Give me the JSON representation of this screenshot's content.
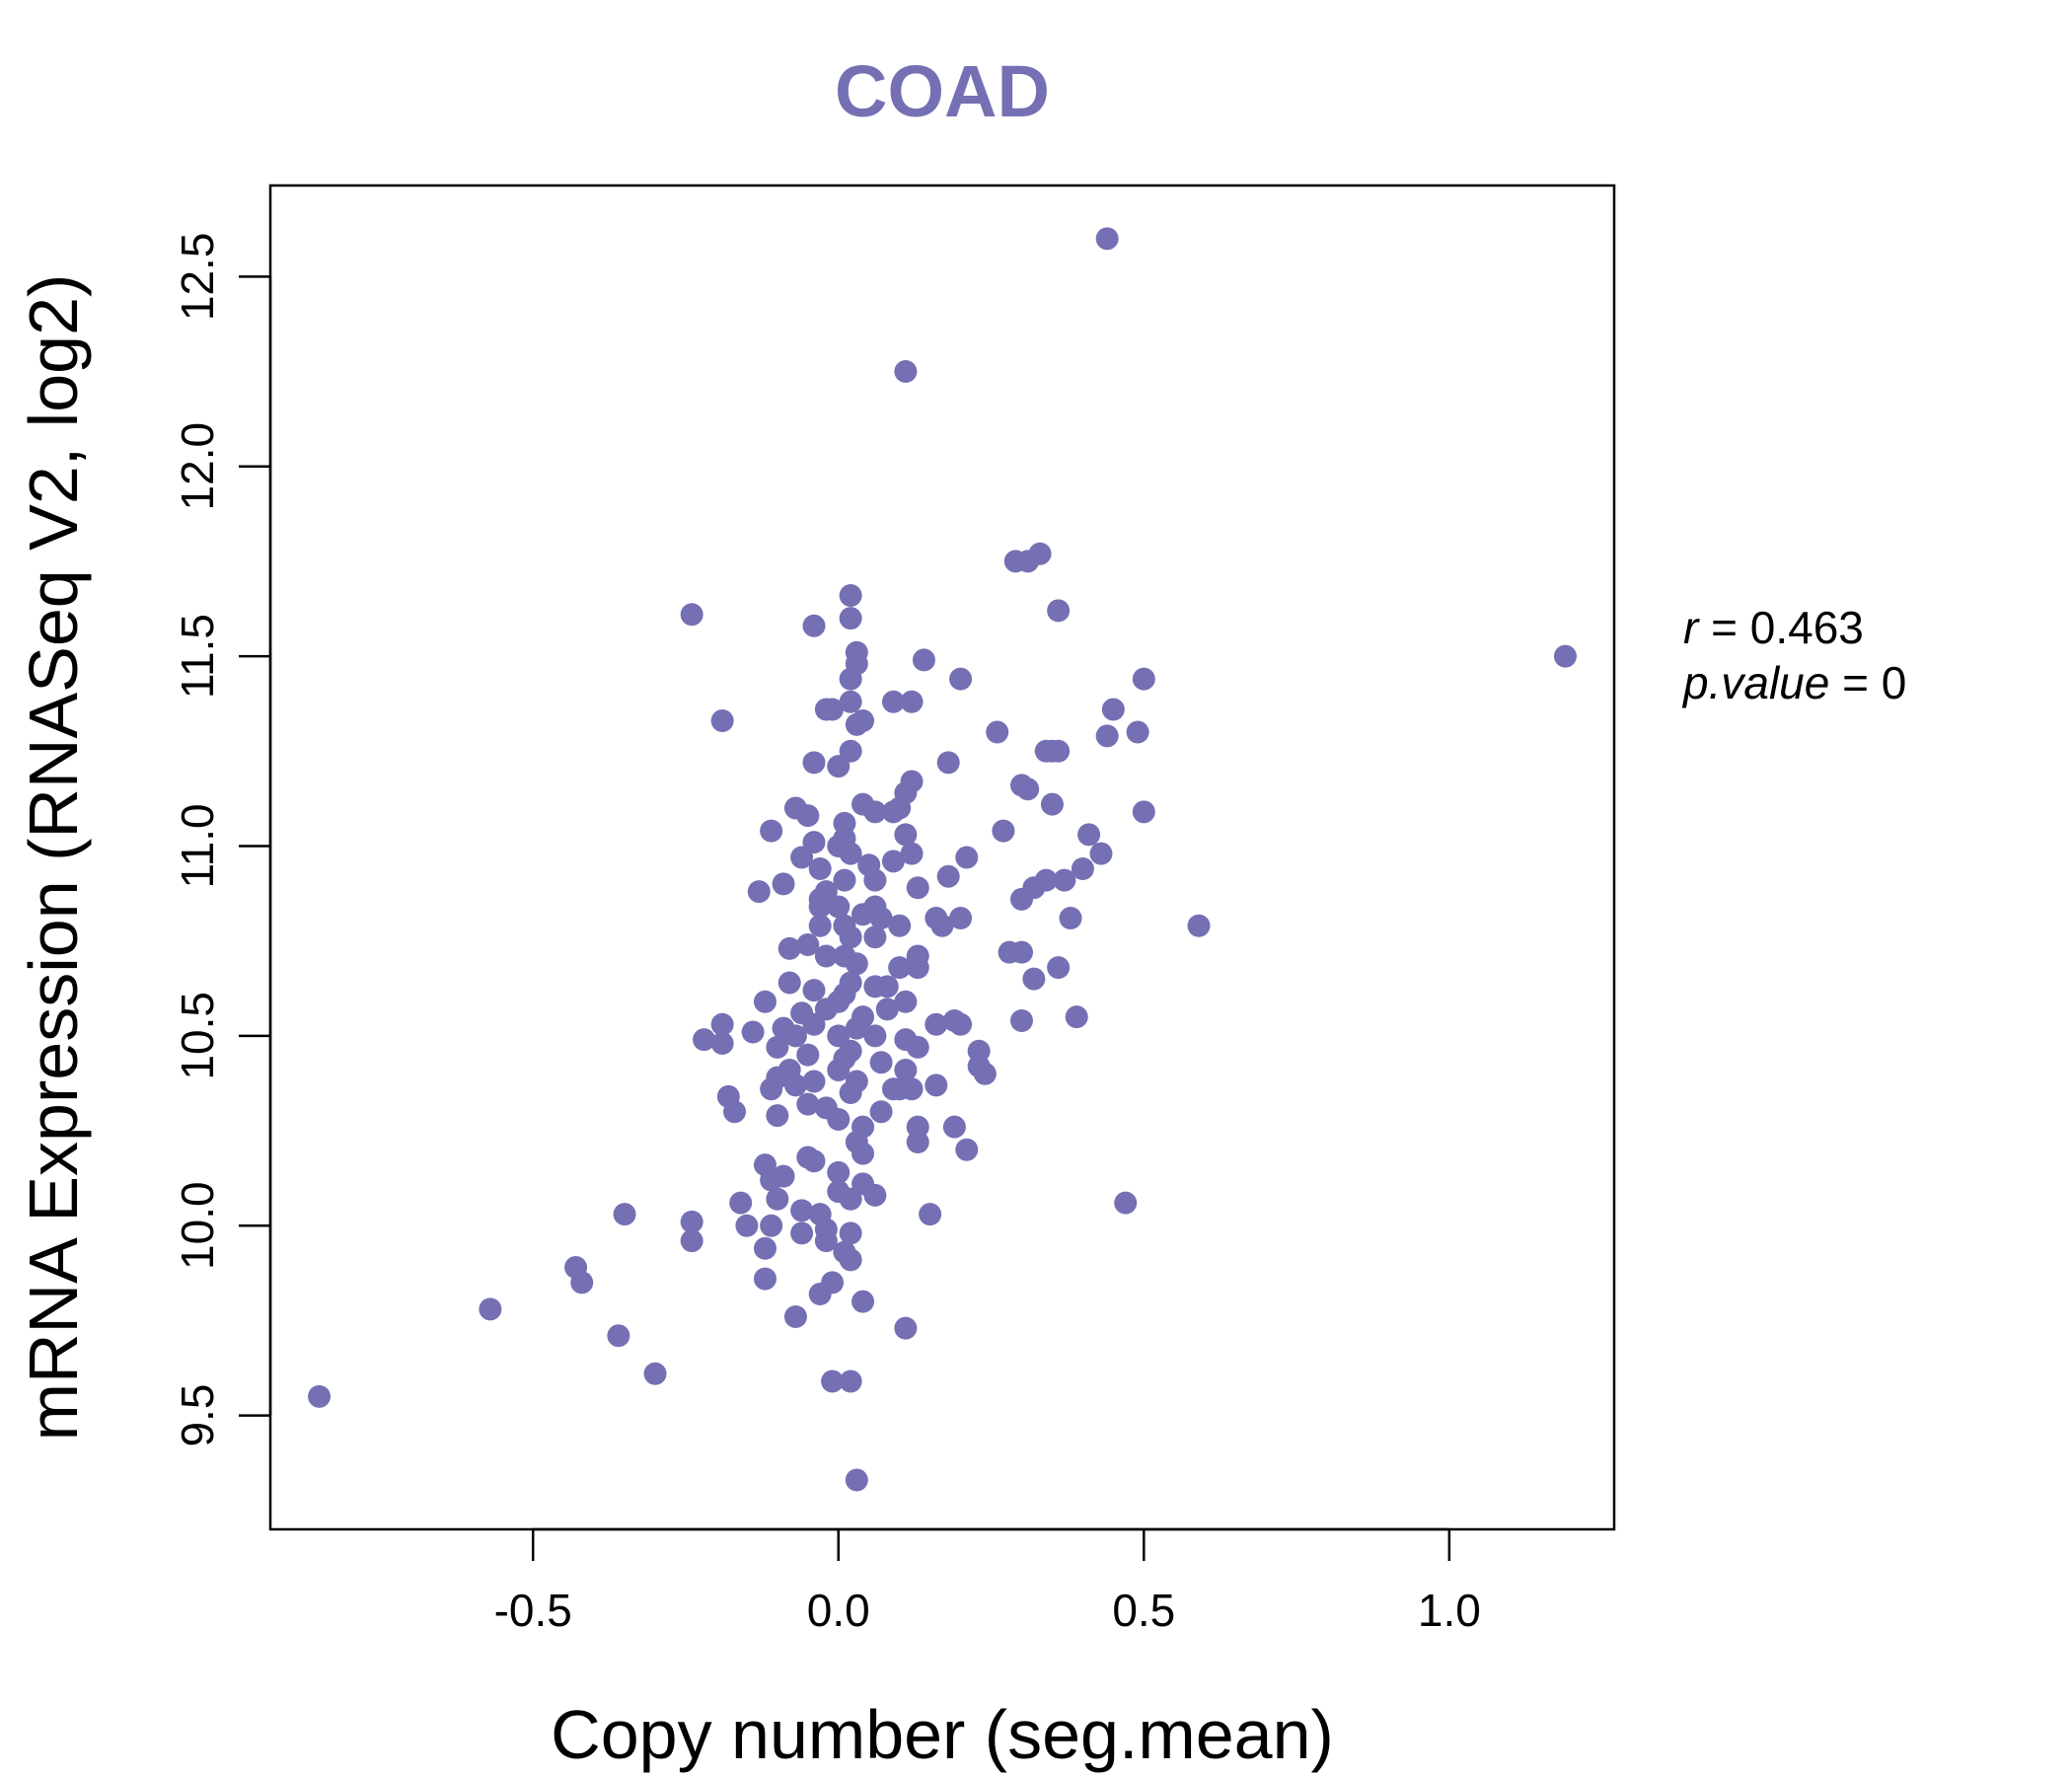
{
  "colors": {
    "accent": "#7570b3",
    "axis": "#000000",
    "background": "#ffffff"
  },
  "stats": {
    "r_label": "r",
    "r_value": "0.463",
    "p_label": "p.value",
    "p_value": "0"
  },
  "chart_data": {
    "type": "scatter",
    "title": "COAD",
    "xlabel": "Copy number (seg.mean)",
    "ylabel": "mRNA Expression (RNASeq V2, log2)",
    "xlim": [
      -0.93,
      1.27
    ],
    "ylim": [
      9.2,
      12.74
    ],
    "x_ticks": [
      -0.5,
      0.0,
      0.5,
      1.0
    ],
    "x_tick_labels": [
      "-0.5",
      "0.0",
      "0.5",
      "1.0"
    ],
    "y_ticks": [
      9.5,
      10.0,
      10.5,
      11.0,
      11.5,
      12.0,
      12.5
    ],
    "y_tick_labels": [
      "9.5",
      "10.0",
      "10.5",
      "11.0",
      "11.5",
      "12.0",
      "12.5"
    ],
    "grid": false,
    "legend": "none",
    "points": [
      [
        0.44,
        12.6
      ],
      [
        0.11,
        12.25
      ],
      [
        0.33,
        11.77
      ],
      [
        0.29,
        11.75
      ],
      [
        0.31,
        11.75
      ],
      [
        0.36,
        11.62
      ],
      [
        0.02,
        11.66
      ],
      [
        0.02,
        11.6
      ],
      [
        -0.04,
        11.58
      ],
      [
        -0.24,
        11.61
      ],
      [
        1.19,
        11.5
      ],
      [
        0.03,
        11.51
      ],
      [
        0.03,
        11.48
      ],
      [
        0.14,
        11.49
      ],
      [
        0.02,
        11.44
      ],
      [
        0.2,
        11.44
      ],
      [
        0.5,
        11.44
      ],
      [
        0.09,
        11.38
      ],
      [
        0.12,
        11.38
      ],
      [
        0.02,
        11.38
      ],
      [
        -0.01,
        11.36
      ],
      [
        -0.02,
        11.36
      ],
      [
        0.45,
        11.36
      ],
      [
        -0.19,
        11.33
      ],
      [
        0.04,
        11.33
      ],
      [
        0.03,
        11.32
      ],
      [
        0.26,
        11.3
      ],
      [
        0.44,
        11.29
      ],
      [
        0.49,
        11.3
      ],
      [
        0.34,
        11.25
      ],
      [
        0.35,
        11.25
      ],
      [
        0.36,
        11.25
      ],
      [
        0.02,
        11.25
      ],
      [
        -0.04,
        11.22
      ],
      [
        0.0,
        11.21
      ],
      [
        0.18,
        11.22
      ],
      [
        0.12,
        11.17
      ],
      [
        0.3,
        11.16
      ],
      [
        0.31,
        11.15
      ],
      [
        0.11,
        11.14
      ],
      [
        0.35,
        11.11
      ],
      [
        0.04,
        11.11
      ],
      [
        0.06,
        11.09
      ],
      [
        0.09,
        11.09
      ],
      [
        0.1,
        11.1
      ],
      [
        0.5,
        11.09
      ],
      [
        -0.07,
        11.1
      ],
      [
        -0.05,
        11.08
      ],
      [
        0.01,
        11.06
      ],
      [
        -0.11,
        11.04
      ],
      [
        0.27,
        11.04
      ],
      [
        0.41,
        11.03
      ],
      [
        0.11,
        11.03
      ],
      [
        0.01,
        11.02
      ],
      [
        -0.04,
        11.01
      ],
      [
        0.0,
        11.0
      ],
      [
        0.02,
        10.98
      ],
      [
        -0.06,
        10.97
      ],
      [
        0.12,
        10.98
      ],
      [
        0.21,
        10.97
      ],
      [
        0.43,
        10.98
      ],
      [
        0.09,
        10.96
      ],
      [
        0.05,
        10.95
      ],
      [
        -0.03,
        10.94
      ],
      [
        0.4,
        10.94
      ],
      [
        0.18,
        10.92
      ],
      [
        0.37,
        10.91
      ],
      [
        0.34,
        10.91
      ],
      [
        0.01,
        10.91
      ],
      [
        -0.09,
        10.9
      ],
      [
        0.06,
        10.91
      ],
      [
        0.32,
        10.89
      ],
      [
        0.13,
        10.89
      ],
      [
        -0.02,
        10.88
      ],
      [
        -0.13,
        10.88
      ],
      [
        -0.03,
        10.86
      ],
      [
        0.3,
        10.86
      ],
      [
        0.0,
        10.84
      ],
      [
        0.06,
        10.84
      ],
      [
        -0.03,
        10.84
      ],
      [
        0.04,
        10.82
      ],
      [
        0.07,
        10.81
      ],
      [
        0.16,
        10.81
      ],
      [
        0.2,
        10.81
      ],
      [
        0.38,
        10.81
      ],
      [
        0.59,
        10.79
      ],
      [
        0.17,
        10.79
      ],
      [
        0.1,
        10.79
      ],
      [
        0.01,
        10.79
      ],
      [
        -0.03,
        10.79
      ],
      [
        0.06,
        10.76
      ],
      [
        0.02,
        10.76
      ],
      [
        -0.05,
        10.74
      ],
      [
        -0.08,
        10.73
      ],
      [
        0.28,
        10.72
      ],
      [
        0.3,
        10.72
      ],
      [
        0.01,
        10.71
      ],
      [
        0.13,
        10.71
      ],
      [
        -0.02,
        10.71
      ],
      [
        0.03,
        10.69
      ],
      [
        0.1,
        10.68
      ],
      [
        0.13,
        10.68
      ],
      [
        0.36,
        10.68
      ],
      [
        -0.08,
        10.64
      ],
      [
        0.32,
        10.65
      ],
      [
        0.02,
        10.64
      ],
      [
        0.06,
        10.63
      ],
      [
        0.08,
        10.63
      ],
      [
        -0.04,
        10.62
      ],
      [
        0.01,
        10.61
      ],
      [
        -0.12,
        10.59
      ],
      [
        0.0,
        10.59
      ],
      [
        0.11,
        10.59
      ],
      [
        -0.02,
        10.57
      ],
      [
        0.08,
        10.57
      ],
      [
        -0.06,
        10.56
      ],
      [
        0.04,
        10.55
      ],
      [
        0.19,
        10.54
      ],
      [
        0.3,
        10.54
      ],
      [
        0.39,
        10.55
      ],
      [
        -0.04,
        10.53
      ],
      [
        0.16,
        10.53
      ],
      [
        0.2,
        10.53
      ],
      [
        -0.19,
        10.53
      ],
      [
        -0.09,
        10.52
      ],
      [
        0.03,
        10.52
      ],
      [
        -0.14,
        10.51
      ],
      [
        -0.07,
        10.5
      ],
      [
        0.0,
        10.5
      ],
      [
        0.06,
        10.5
      ],
      [
        -0.22,
        10.49
      ],
      [
        -0.19,
        10.48
      ],
      [
        0.11,
        10.49
      ],
      [
        0.13,
        10.47
      ],
      [
        -0.1,
        10.47
      ],
      [
        0.02,
        10.46
      ],
      [
        0.23,
        10.46
      ],
      [
        -0.05,
        10.45
      ],
      [
        0.01,
        10.44
      ],
      [
        0.07,
        10.43
      ],
      [
        0.23,
        10.42
      ],
      [
        -0.08,
        10.41
      ],
      [
        0.0,
        10.41
      ],
      [
        0.11,
        10.41
      ],
      [
        0.24,
        10.4
      ],
      [
        -0.1,
        10.39
      ],
      [
        -0.04,
        10.38
      ],
      [
        0.03,
        10.38
      ],
      [
        0.16,
        10.37
      ],
      [
        -0.07,
        10.37
      ],
      [
        0.09,
        10.36
      ],
      [
        0.12,
        10.36
      ],
      [
        0.1,
        10.36
      ],
      [
        -0.11,
        10.36
      ],
      [
        0.02,
        10.35
      ],
      [
        -0.18,
        10.34
      ],
      [
        -0.05,
        10.32
      ],
      [
        -0.02,
        10.31
      ],
      [
        -0.17,
        10.3
      ],
      [
        0.07,
        10.3
      ],
      [
        -0.1,
        10.29
      ],
      [
        0.0,
        10.28
      ],
      [
        0.04,
        10.26
      ],
      [
        0.13,
        10.26
      ],
      [
        0.19,
        10.26
      ],
      [
        0.03,
        10.22
      ],
      [
        0.13,
        10.22
      ],
      [
        0.21,
        10.2
      ],
      [
        0.04,
        10.19
      ],
      [
        -0.05,
        10.18
      ],
      [
        -0.04,
        10.17
      ],
      [
        -0.12,
        10.16
      ],
      [
        0.0,
        10.14
      ],
      [
        -0.09,
        10.13
      ],
      [
        -0.11,
        10.12
      ],
      [
        0.04,
        10.11
      ],
      [
        0.0,
        10.09
      ],
      [
        -0.1,
        10.07
      ],
      [
        0.06,
        10.08
      ],
      [
        0.02,
        10.07
      ],
      [
        -0.16,
        10.06
      ],
      [
        0.47,
        10.06
      ],
      [
        -0.06,
        10.04
      ],
      [
        -0.03,
        10.03
      ],
      [
        0.15,
        10.03
      ],
      [
        -0.35,
        10.03
      ],
      [
        -0.24,
        10.01
      ],
      [
        -0.15,
        10.0
      ],
      [
        -0.11,
        10.0
      ],
      [
        -0.02,
        9.99
      ],
      [
        -0.06,
        9.98
      ],
      [
        0.02,
        9.98
      ],
      [
        -0.24,
        9.96
      ],
      [
        -0.02,
        9.96
      ],
      [
        -0.12,
        9.94
      ],
      [
        0.01,
        9.93
      ],
      [
        0.02,
        9.91
      ],
      [
        -0.43,
        9.89
      ],
      [
        -0.12,
        9.86
      ],
      [
        -0.42,
        9.85
      ],
      [
        -0.01,
        9.85
      ],
      [
        -0.03,
        9.82
      ],
      [
        0.04,
        9.8
      ],
      [
        -0.57,
        9.78
      ],
      [
        -0.07,
        9.76
      ],
      [
        0.11,
        9.73
      ],
      [
        -0.36,
        9.71
      ],
      [
        -0.3,
        9.61
      ],
      [
        -0.01,
        9.59
      ],
      [
        0.02,
        9.59
      ],
      [
        -0.85,
        9.55
      ],
      [
        0.03,
        9.33
      ]
    ]
  }
}
